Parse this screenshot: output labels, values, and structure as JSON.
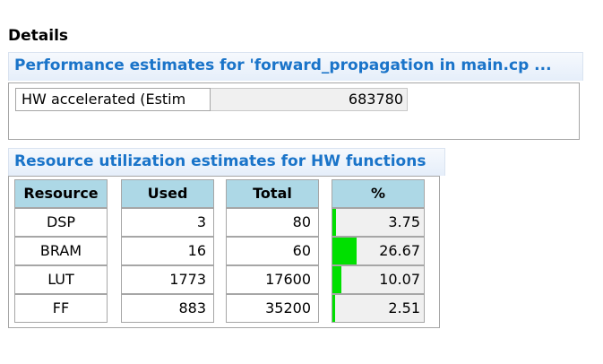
{
  "details_title": "Details",
  "perf": {
    "header": "Performance estimates for 'forward_propagation in main.cp ...",
    "label": "HW accelerated (Estim",
    "value": "683780"
  },
  "resources": {
    "header": "Resource utilization estimates for HW functions",
    "columns": [
      "Resource",
      "Used",
      "Total",
      "%"
    ],
    "rows": [
      {
        "name": "DSP",
        "used": "3",
        "total": "80",
        "pct": "3.75",
        "pct_value": 3.75
      },
      {
        "name": "BRAM",
        "used": "16",
        "total": "60",
        "pct": "26.67",
        "pct_value": 26.67
      },
      {
        "name": "LUT",
        "used": "1773",
        "total": "17600",
        "pct": "10.07",
        "pct_value": 10.07
      },
      {
        "name": "FF",
        "used": "883",
        "total": "35200",
        "pct": "2.51",
        "pct_value": 2.51
      }
    ]
  },
  "colors": {
    "accent": "#1a74c9",
    "header_bg": "#add8e6",
    "bar": "#00e000"
  }
}
